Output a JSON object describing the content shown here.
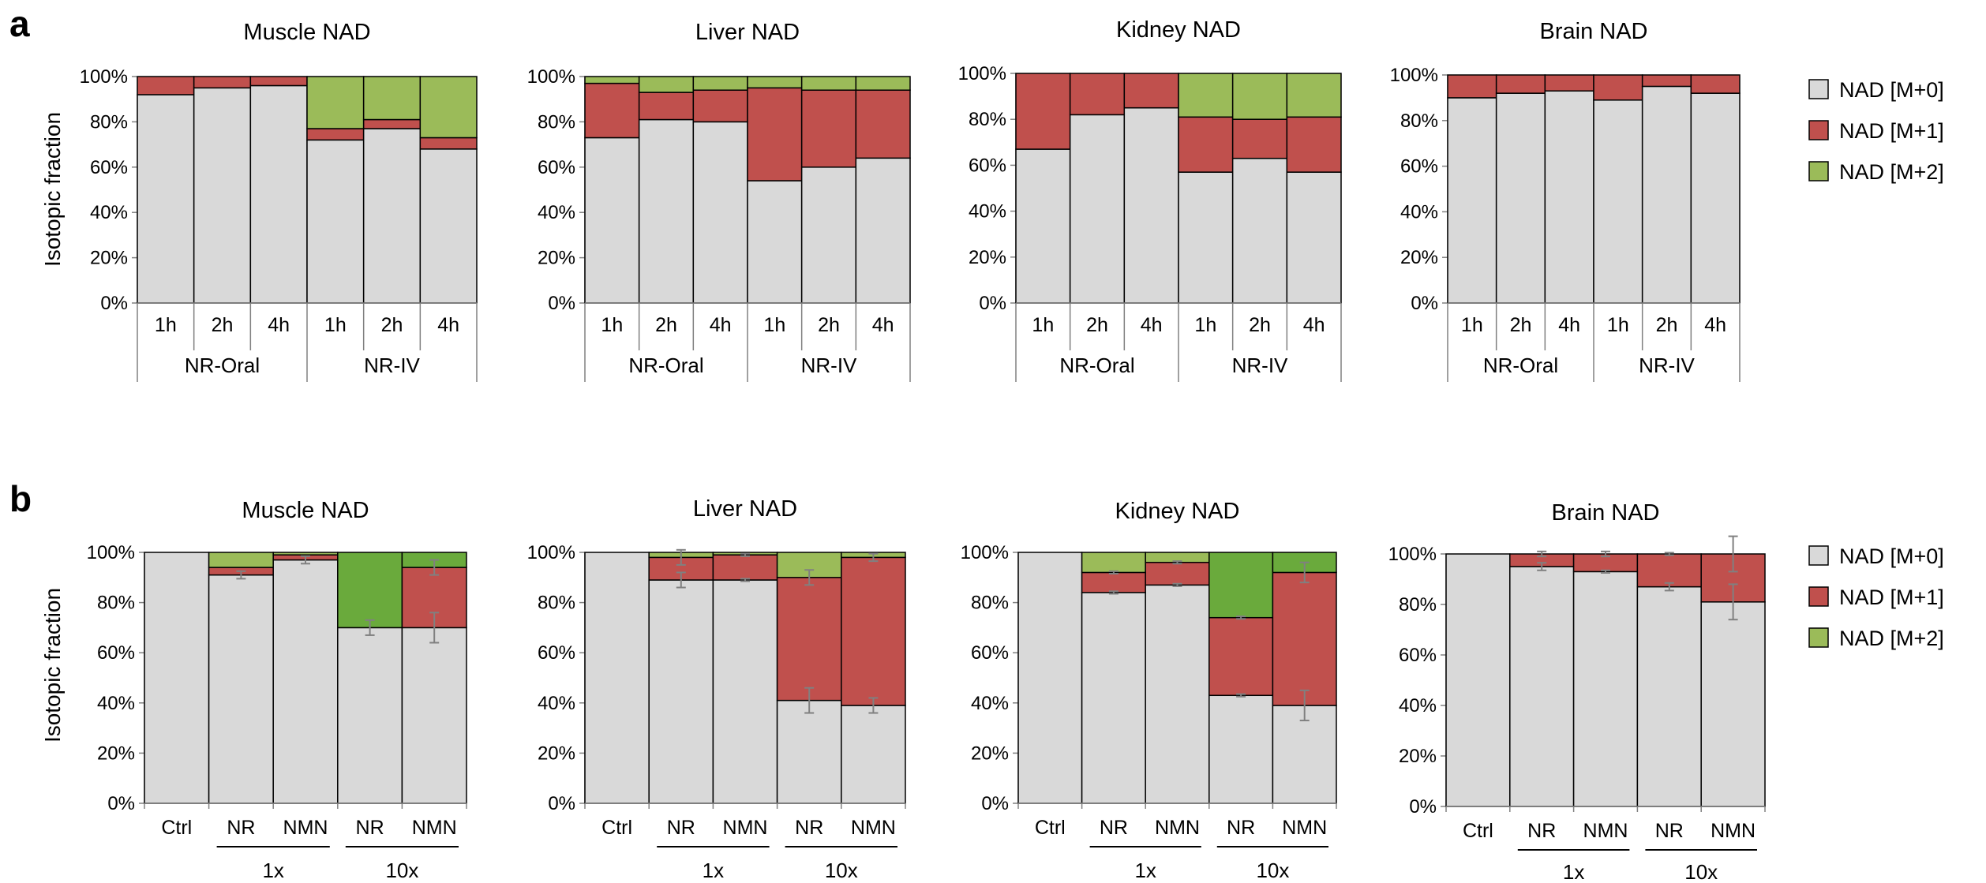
{
  "panels": [
    {
      "letter": "a",
      "ylabel": "Isotopic fraction"
    },
    {
      "letter": "b",
      "ylabel": "Isotopic fraction"
    }
  ],
  "legend": [
    {
      "label": "NAD [M+0]",
      "color": "#d9d9d9"
    },
    {
      "label": "NAD [M+1]",
      "color": "#c0504d"
    },
    {
      "label": "NAD [M+2]",
      "color": "#9bbb59"
    }
  ],
  "colors": {
    "m0": "#d9d9d9",
    "m1": "#c0504d",
    "m2": "#9bbb59",
    "m2_dark": "#6aaa3c",
    "edge": "#000000",
    "axis": "#808080",
    "errorbar": "#808080"
  },
  "yticks": [
    "0%",
    "20%",
    "40%",
    "60%",
    "80%",
    "100%"
  ],
  "chart_data": [
    {
      "type": "bar",
      "stacked": true,
      "panel": "a",
      "title": "Muscle NAD",
      "ylabel": "Isotopic fraction",
      "ylim": [
        0,
        100
      ],
      "categories": [
        "1h",
        "2h",
        "4h",
        "1h",
        "2h",
        "4h"
      ],
      "groups": [
        {
          "label": "NR-Oral",
          "span": [
            0,
            2
          ]
        },
        {
          "label": "NR-IV",
          "span": [
            3,
            5
          ]
        }
      ],
      "series": [
        {
          "name": "NAD [M+0]",
          "values": [
            92,
            95,
            96,
            72,
            77,
            68
          ]
        },
        {
          "name": "NAD [M+1]",
          "values": [
            8,
            5,
            4,
            5,
            4,
            5
          ]
        },
        {
          "name": "NAD [M+2]",
          "values": [
            0,
            0,
            0,
            23,
            19,
            27
          ]
        }
      ]
    },
    {
      "type": "bar",
      "stacked": true,
      "panel": "a",
      "title": "Liver NAD",
      "ylabel": "Isotopic fraction",
      "ylim": [
        0,
        100
      ],
      "categories": [
        "1h",
        "2h",
        "4h",
        "1h",
        "2h",
        "4h"
      ],
      "groups": [
        {
          "label": "NR-Oral",
          "span": [
            0,
            2
          ]
        },
        {
          "label": "NR-IV",
          "span": [
            3,
            5
          ]
        }
      ],
      "series": [
        {
          "name": "NAD [M+0]",
          "values": [
            73,
            81,
            80,
            54,
            60,
            64
          ]
        },
        {
          "name": "NAD [M+1]",
          "values": [
            24,
            12,
            14,
            41,
            34,
            30
          ]
        },
        {
          "name": "NAD [M+2]",
          "values": [
            3,
            7,
            6,
            5,
            6,
            6
          ]
        }
      ]
    },
    {
      "type": "bar",
      "stacked": true,
      "panel": "a",
      "title": "Kidney NAD",
      "ylabel": "Isotopic fraction",
      "ylim": [
        0,
        100
      ],
      "categories": [
        "1h",
        "2h",
        "4h",
        "1h",
        "2h",
        "4h"
      ],
      "groups": [
        {
          "label": "NR-Oral",
          "span": [
            0,
            2
          ]
        },
        {
          "label": "NR-IV",
          "span": [
            3,
            5
          ]
        }
      ],
      "series": [
        {
          "name": "NAD [M+0]",
          "values": [
            67,
            82,
            85,
            57,
            63,
            57
          ]
        },
        {
          "name": "NAD [M+1]",
          "values": [
            33,
            18,
            15,
            24,
            17,
            24
          ]
        },
        {
          "name": "NAD [M+2]",
          "values": [
            0,
            0,
            0,
            19,
            20,
            19
          ]
        }
      ]
    },
    {
      "type": "bar",
      "stacked": true,
      "panel": "a",
      "title": "Brain NAD",
      "ylabel": "Isotopic fraction",
      "ylim": [
        0,
        100
      ],
      "categories": [
        "1h",
        "2h",
        "4h",
        "1h",
        "2h",
        "4h"
      ],
      "groups": [
        {
          "label": "NR-Oral",
          "span": [
            0,
            2
          ]
        },
        {
          "label": "NR-IV",
          "span": [
            3,
            5
          ]
        }
      ],
      "series": [
        {
          "name": "NAD [M+0]",
          "values": [
            90,
            92,
            93,
            89,
            95,
            92
          ]
        },
        {
          "name": "NAD [M+1]",
          "values": [
            10,
            8,
            7,
            11,
            5,
            8
          ]
        },
        {
          "name": "NAD [M+2]",
          "values": [
            0,
            0,
            0,
            0,
            0,
            0
          ]
        }
      ]
    },
    {
      "type": "bar",
      "stacked": true,
      "panel": "b",
      "title": "Muscle NAD",
      "ylabel": "Isotopic fraction",
      "ylim": [
        0,
        100
      ],
      "categories": [
        "Ctrl",
        "NR",
        "NMN",
        "NR",
        "NMN"
      ],
      "groups": [
        {
          "label": "1x",
          "span": [
            1,
            2
          ]
        },
        {
          "label": "10x",
          "span": [
            3,
            4
          ]
        }
      ],
      "series": [
        {
          "name": "NAD [M+0]",
          "values": [
            100,
            91,
            97,
            70,
            70
          ],
          "error": [
            0,
            1.5,
            1.5,
            3,
            6
          ]
        },
        {
          "name": "NAD [M+1]",
          "values": [
            0,
            3,
            2,
            0,
            24
          ],
          "error": [
            0,
            0,
            0,
            0,
            3
          ]
        },
        {
          "name": "NAD [M+2]",
          "values": [
            0,
            6,
            1,
            30,
            6
          ]
        }
      ]
    },
    {
      "type": "bar",
      "stacked": true,
      "panel": "b",
      "title": "Liver NAD",
      "ylabel": "Isotopic fraction",
      "ylim": [
        0,
        100
      ],
      "categories": [
        "Ctrl",
        "NR",
        "NMN",
        "NR",
        "NMN"
      ],
      "groups": [
        {
          "label": "1x",
          "span": [
            1,
            2
          ]
        },
        {
          "label": "10x",
          "span": [
            3,
            4
          ]
        }
      ],
      "series": [
        {
          "name": "NAD [M+0]",
          "values": [
            100,
            89,
            89,
            41,
            39
          ],
          "error": [
            0,
            3,
            0.5,
            5,
            3
          ]
        },
        {
          "name": "NAD [M+1]",
          "values": [
            0,
            9,
            10,
            49,
            59
          ],
          "error": [
            0,
            3,
            0.5,
            3,
            1.5
          ]
        },
        {
          "name": "NAD [M+2]",
          "values": [
            0,
            2,
            1,
            10,
            2
          ]
        }
      ]
    },
    {
      "type": "bar",
      "stacked": true,
      "panel": "b",
      "title": "Kidney NAD",
      "ylabel": "Isotopic fraction",
      "ylim": [
        0,
        100
      ],
      "categories": [
        "Ctrl",
        "NR",
        "NMN",
        "NR",
        "NMN"
      ],
      "groups": [
        {
          "label": "1x",
          "span": [
            1,
            2
          ]
        },
        {
          "label": "10x",
          "span": [
            3,
            4
          ]
        }
      ],
      "series": [
        {
          "name": "NAD [M+0]",
          "values": [
            100,
            84,
            87,
            43,
            39
          ],
          "error": [
            0,
            0.5,
            0.5,
            0.5,
            6
          ]
        },
        {
          "name": "NAD [M+1]",
          "values": [
            0,
            8,
            9,
            31,
            53
          ],
          "error": [
            0,
            0.5,
            0.5,
            0.5,
            4
          ]
        },
        {
          "name": "NAD [M+2]",
          "values": [
            0,
            8,
            4,
            26,
            8
          ]
        }
      ]
    },
    {
      "type": "bar",
      "stacked": true,
      "panel": "b",
      "title": "Brain NAD",
      "ylabel": "Isotopic fraction",
      "ylim": [
        0,
        100
      ],
      "categories": [
        "Ctrl",
        "NR",
        "NMN",
        "NR",
        "NMN"
      ],
      "groups": [
        {
          "label": "1x",
          "span": [
            1,
            2
          ]
        },
        {
          "label": "10x",
          "span": [
            3,
            4
          ]
        }
      ],
      "series": [
        {
          "name": "NAD [M+0]",
          "values": [
            100,
            95,
            93,
            87,
            81
          ],
          "error": [
            0,
            1.5,
            0.5,
            1.5,
            7
          ]
        },
        {
          "name": "NAD [M+1]",
          "values": [
            0,
            5,
            7,
            13,
            19
          ],
          "error": [
            0,
            1,
            1,
            0.5,
            7
          ]
        },
        {
          "name": "NAD [M+2]",
          "values": [
            0,
            0,
            0,
            0,
            0
          ]
        }
      ]
    }
  ]
}
